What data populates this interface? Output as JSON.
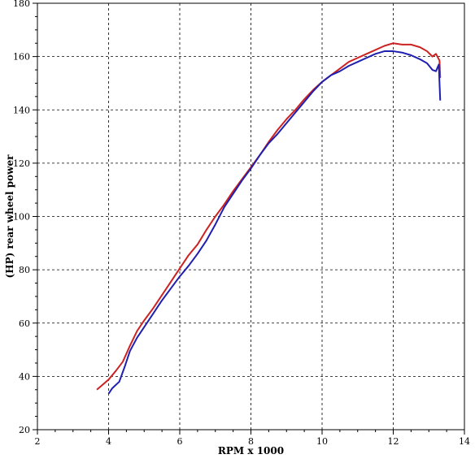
{
  "chart_data": {
    "type": "line",
    "title": "",
    "xlabel": "RPM x 1000",
    "ylabel": "(HP) rear wheel power",
    "xlim": [
      2,
      14
    ],
    "ylim": [
      20,
      180
    ],
    "xticks": [
      2,
      4,
      6,
      8,
      10,
      12,
      14
    ],
    "yticks": [
      20,
      40,
      60,
      80,
      100,
      120,
      140,
      160,
      180
    ],
    "xtick_labels": [
      "2",
      "4",
      "6",
      "8",
      "10",
      "12",
      "14"
    ],
    "ytick_labels": [
      "20",
      "40",
      "60",
      "80",
      "100",
      "120",
      "140",
      "160",
      "180"
    ],
    "grid": true,
    "colors": {
      "red": "#cc2222",
      "blue": "#1f1fb0"
    },
    "series": [
      {
        "color": "#cc2222",
        "points": [
          [
            3.67,
            35.0
          ],
          [
            3.8,
            36.5
          ],
          [
            4.0,
            38.8
          ],
          [
            4.2,
            42.0
          ],
          [
            4.4,
            45.5
          ],
          [
            4.6,
            51.5
          ],
          [
            4.8,
            57.0
          ],
          [
            5.0,
            61.0
          ],
          [
            5.25,
            65.5
          ],
          [
            5.5,
            70.5
          ],
          [
            5.75,
            75.5
          ],
          [
            6.0,
            80.5
          ],
          [
            6.25,
            85.5
          ],
          [
            6.5,
            89.5
          ],
          [
            6.75,
            95.0
          ],
          [
            7.0,
            100.0
          ],
          [
            7.25,
            104.5
          ],
          [
            7.5,
            109.5
          ],
          [
            7.75,
            114.0
          ],
          [
            8.0,
            118.5
          ],
          [
            8.25,
            123.0
          ],
          [
            8.5,
            128.0
          ],
          [
            8.75,
            132.5
          ],
          [
            9.0,
            136.5
          ],
          [
            9.25,
            140.0
          ],
          [
            9.5,
            144.0
          ],
          [
            9.75,
            147.5
          ],
          [
            10.0,
            150.5
          ],
          [
            10.25,
            153.0
          ],
          [
            10.5,
            155.5
          ],
          [
            10.75,
            158.0
          ],
          [
            11.0,
            159.5
          ],
          [
            11.25,
            161.0
          ],
          [
            11.5,
            162.5
          ],
          [
            11.75,
            164.0
          ],
          [
            12.0,
            165.0
          ],
          [
            12.25,
            164.5
          ],
          [
            12.5,
            164.5
          ],
          [
            12.75,
            163.5
          ],
          [
            12.95,
            162.0
          ],
          [
            13.1,
            160.0
          ],
          [
            13.2,
            161.0
          ],
          [
            13.3,
            158.5
          ],
          [
            13.32,
            152.0
          ]
        ]
      },
      {
        "color": "#1f1fb0",
        "points": [
          [
            4.0,
            33.5
          ],
          [
            4.1,
            35.5
          ],
          [
            4.3,
            38.0
          ],
          [
            4.45,
            43.5
          ],
          [
            4.6,
            49.5
          ],
          [
            4.8,
            54.5
          ],
          [
            5.0,
            58.5
          ],
          [
            5.25,
            63.5
          ],
          [
            5.5,
            68.5
          ],
          [
            5.75,
            73.0
          ],
          [
            6.0,
            77.5
          ],
          [
            6.25,
            81.5
          ],
          [
            6.5,
            86.0
          ],
          [
            6.75,
            91.0
          ],
          [
            7.0,
            97.0
          ],
          [
            7.25,
            103.5
          ],
          [
            7.5,
            108.5
          ],
          [
            7.75,
            113.5
          ],
          [
            8.0,
            118.0
          ],
          [
            8.25,
            123.0
          ],
          [
            8.5,
            127.5
          ],
          [
            8.75,
            131.0
          ],
          [
            9.0,
            135.0
          ],
          [
            9.25,
            139.0
          ],
          [
            9.5,
            143.0
          ],
          [
            9.75,
            147.0
          ],
          [
            10.0,
            150.5
          ],
          [
            10.25,
            153.0
          ],
          [
            10.5,
            154.5
          ],
          [
            10.75,
            156.5
          ],
          [
            11.0,
            158.0
          ],
          [
            11.25,
            159.5
          ],
          [
            11.5,
            161.0
          ],
          [
            11.75,
            162.0
          ],
          [
            12.0,
            162.0
          ],
          [
            12.25,
            161.5
          ],
          [
            12.5,
            160.5
          ],
          [
            12.75,
            159.0
          ],
          [
            12.95,
            157.5
          ],
          [
            13.1,
            155.0
          ],
          [
            13.2,
            154.5
          ],
          [
            13.28,
            157.0
          ],
          [
            13.3,
            150.0
          ],
          [
            13.32,
            143.5
          ]
        ]
      }
    ]
  }
}
